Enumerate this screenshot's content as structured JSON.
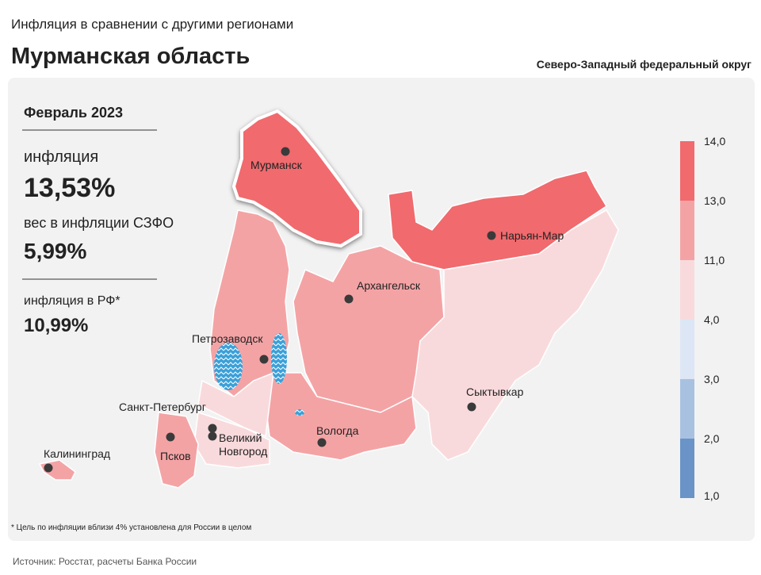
{
  "header": {
    "subtitle": "Инфляция в сравнении с другими регионами",
    "title": "Мурманская область",
    "district": "Северо-Западный федеральный округ"
  },
  "panel": {
    "period": "Февраль 2023",
    "inflation_label": "инфляция",
    "inflation_value": "13,53%",
    "weight_label": "вес в инфляции СЗФО",
    "weight_value": "5,99%",
    "rf_label": "инфляция в РФ*",
    "rf_value": "10,99%"
  },
  "cities": [
    {
      "label": "Мурманск"
    },
    {
      "label": "Нарьян-Мар"
    },
    {
      "label": "Архангельск"
    },
    {
      "label": "Петрозаводск"
    },
    {
      "label": "Сыктывкар"
    },
    {
      "label": "Санкт-Петербург"
    },
    {
      "label": "Вологда"
    },
    {
      "label": "Великий Новгород"
    },
    {
      "label": "Псков"
    },
    {
      "label": "Калининград"
    }
  ],
  "legend": {
    "ticks": [
      "14,0",
      "13,0",
      "11,0",
      "4,0",
      "3,0",
      "2,0",
      "1,0"
    ]
  },
  "footnote": "* Цель по инфляции вблизи 4% установлена для России в целом",
  "source": "Источник: Росстат, расчеты Банка России"
}
